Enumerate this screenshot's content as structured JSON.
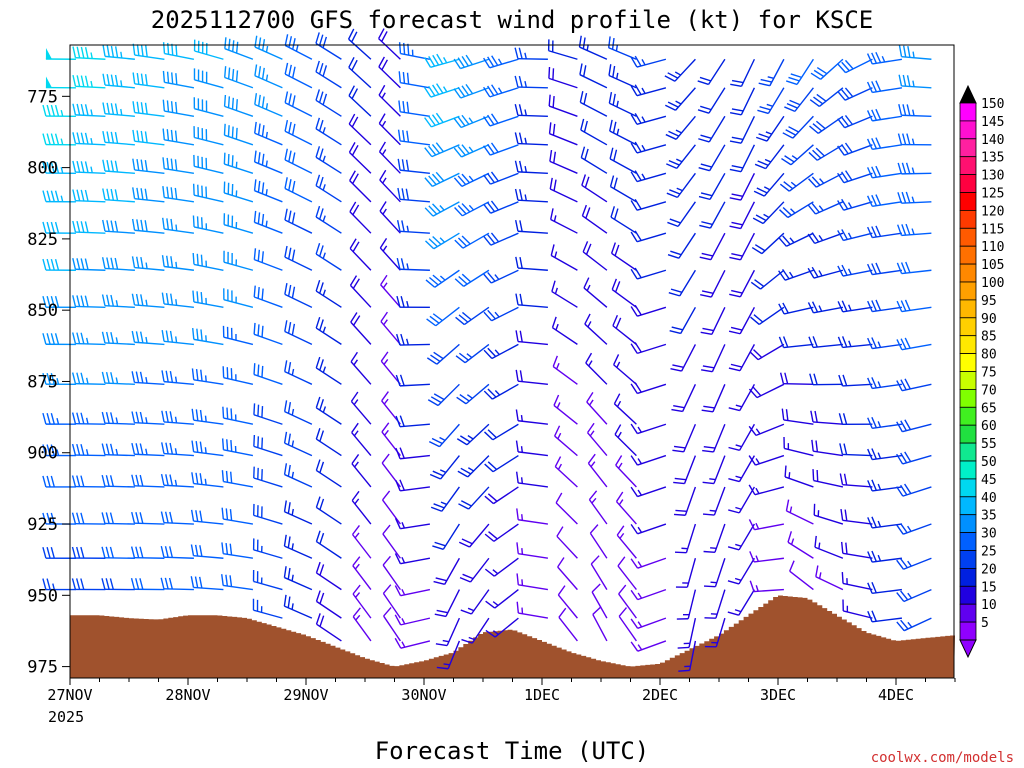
{
  "chart_data": {
    "type": "wind-barb-profile",
    "title": "2025112700 GFS forecast wind profile (kt) for KSCE",
    "xlabel": "Forecast Time (UTC)",
    "ylabel": "",
    "credit": "coolwx.com/models",
    "x_ticks": [
      "27NOV",
      "28NOV",
      "29NOV",
      "30NOV",
      "1DEC",
      "2DEC",
      "3DEC",
      "4DEC"
    ],
    "x_year_label": "2025",
    "xlim_days": [
      0,
      7.5
    ],
    "y_ticks": [
      "775",
      "800",
      "825",
      "850",
      "875",
      "900",
      "925",
      "950",
      "975"
    ],
    "ylim_hpa": [
      979,
      757
    ],
    "barb_levels_hpa": [
      762,
      772,
      782,
      792,
      802,
      812,
      823,
      836,
      849,
      862,
      876,
      890,
      901,
      912,
      925,
      937,
      948,
      958,
      966
    ],
    "barb_interval_hours": 6,
    "colorbar": {
      "labels": [
        "150",
        "145",
        "140",
        "135",
        "130",
        "125",
        "120",
        "115",
        "110",
        "105",
        "100",
        "95",
        "90",
        "85",
        "80",
        "75",
        "70",
        "65",
        "60",
        "55",
        "50",
        "45",
        "40",
        "35",
        "30",
        "25",
        "20",
        "15",
        "10",
        "5"
      ],
      "colors": [
        "#ff00ff",
        "#ff10d0",
        "#ff20a0",
        "#ff1070",
        "#ff0040",
        "#ff0000",
        "#ff3a00",
        "#ff5a00",
        "#ff7000",
        "#ff8800",
        "#ffa000",
        "#ffb800",
        "#ffd000",
        "#ffe800",
        "#ffff00",
        "#c8ff00",
        "#80ff00",
        "#40f020",
        "#20e040",
        "#10e890",
        "#00f0c8",
        "#00d8f0",
        "#00b8ff",
        "#0090ff",
        "#0060ff",
        "#0040f0",
        "#0020e0",
        "#2000e0",
        "#6000f0",
        "#9000ff"
      ]
    },
    "surface_pressure_hpa": [
      {
        "day": 0,
        "p": 957
      },
      {
        "day": 0.25,
        "p": 957
      },
      {
        "day": 0.5,
        "p": 958
      },
      {
        "day": 0.75,
        "p": 958.5
      },
      {
        "day": 1.0,
        "p": 957
      },
      {
        "day": 1.25,
        "p": 957
      },
      {
        "day": 1.5,
        "p": 958
      },
      {
        "day": 1.75,
        "p": 961
      },
      {
        "day": 2.0,
        "p": 964
      },
      {
        "day": 2.25,
        "p": 968
      },
      {
        "day": 2.5,
        "p": 972
      },
      {
        "day": 2.75,
        "p": 975
      },
      {
        "day": 3.0,
        "p": 973
      },
      {
        "day": 3.25,
        "p": 970
      },
      {
        "day": 3.5,
        "p": 963
      },
      {
        "day": 3.75,
        "p": 962
      },
      {
        "day": 4.0,
        "p": 966
      },
      {
        "day": 4.25,
        "p": 970
      },
      {
        "day": 4.5,
        "p": 973
      },
      {
        "day": 4.75,
        "p": 975
      },
      {
        "day": 5.0,
        "p": 974
      },
      {
        "day": 5.25,
        "p": 969
      },
      {
        "day": 5.5,
        "p": 964
      },
      {
        "day": 5.75,
        "p": 957
      },
      {
        "day": 6.0,
        "p": 950
      },
      {
        "day": 6.25,
        "p": 951
      },
      {
        "day": 6.5,
        "p": 957
      },
      {
        "day": 6.75,
        "p": 963
      },
      {
        "day": 7.0,
        "p": 966
      },
      {
        "day": 7.25,
        "p": 965
      },
      {
        "day": 7.5,
        "p": 964
      }
    ],
    "wind_regimes": [
      {
        "day": 0.0,
        "upper": {
          "dir": 270,
          "spd": 50
        },
        "lower": {
          "dir": 270,
          "spd": 25
        }
      },
      {
        "day": 1.0,
        "upper": {
          "dir": 280,
          "spd": 40
        },
        "lower": {
          "dir": 270,
          "spd": 30
        }
      },
      {
        "day": 1.5,
        "upper": {
          "dir": 290,
          "spd": 40
        },
        "lower": {
          "dir": 275,
          "spd": 30
        }
      },
      {
        "day": 2.25,
        "upper": {
          "dir": 300,
          "spd": 30
        },
        "lower": {
          "dir": 300,
          "spd": 20
        }
      },
      {
        "day": 2.75,
        "upper": {
          "dir": 320,
          "spd": 15
        },
        "lower": {
          "dir": 340,
          "spd": 10
        }
      },
      {
        "day": 3.25,
        "upper": {
          "dir": 255,
          "spd": 45
        },
        "lower": {
          "dir": 200,
          "spd": 15
        }
      },
      {
        "day": 3.75,
        "upper": {
          "dir": 250,
          "spd": 35
        },
        "lower": {
          "dir": 220,
          "spd": 15
        }
      },
      {
        "day": 4.25,
        "upper": {
          "dir": 285,
          "spd": 20
        },
        "lower": {
          "dir": 320,
          "spd": 10
        }
      },
      {
        "day": 4.75,
        "upper": {
          "dir": 300,
          "spd": 25
        },
        "lower": {
          "dir": 340,
          "spd": 10
        }
      },
      {
        "day": 5.25,
        "upper": {
          "dir": 225,
          "spd": 25
        },
        "lower": {
          "dir": 190,
          "spd": 15
        }
      },
      {
        "day": 5.75,
        "upper": {
          "dir": 205,
          "spd": 20
        },
        "lower": {
          "dir": 200,
          "spd": 15
        }
      },
      {
        "day": 6.25,
        "upper": {
          "dir": 210,
          "spd": 30
        },
        "lower": {
          "dir": 320,
          "spd": 10
        }
      },
      {
        "day": 6.75,
        "upper": {
          "dir": 240,
          "spd": 30
        },
        "lower": {
          "dir": 290,
          "spd": 15
        }
      },
      {
        "day": 7.25,
        "upper": {
          "dir": 275,
          "spd": 35
        },
        "lower": {
          "dir": 245,
          "spd": 25
        }
      },
      {
        "day": 7.5,
        "upper": {
          "dir": 275,
          "spd": 40
        },
        "lower": {
          "dir": 240,
          "spd": 25
        }
      }
    ]
  }
}
